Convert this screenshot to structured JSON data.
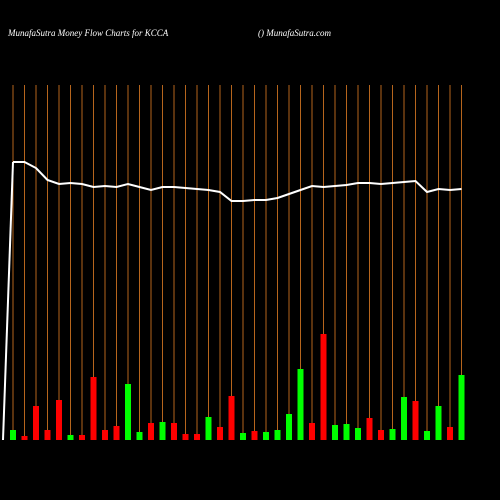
{
  "chart_data": {
    "type": "bar",
    "title": "MunafaSutra  Money Flow  Charts for KCCA",
    "subtitle": "() MunafaSutra.com",
    "ylim": [
      0,
      355
    ],
    "bar_colors": [
      "#00ff00",
      "#ff0000",
      "#ff0000",
      "#ff0000",
      "#ff0000",
      "#00ff00",
      "#ff0000",
      "#ff0000",
      "#ff0000",
      "#ff0000",
      "#00ff00",
      "#00ff00",
      "#ff0000",
      "#00ff00",
      "#ff0000",
      "#ff0000",
      "#ff0000",
      "#00ff00",
      "#ff0000",
      "#ff0000",
      "#00ff00",
      "#ff0000",
      "#00ff00",
      "#00ff00",
      "#00ff00",
      "#00ff00",
      "#ff0000",
      "#ff0000",
      "#00ff00",
      "#00ff00",
      "#00ff00",
      "#ff0000",
      "#ff0000",
      "#00ff00",
      "#00ff00",
      "#ff0000",
      "#00ff00",
      "#00ff00",
      "#ff0000",
      "#00ff00"
    ],
    "values": [
      10,
      4,
      34,
      10,
      40,
      5,
      5,
      63,
      10,
      14,
      56,
      8,
      17,
      18,
      17,
      6,
      6,
      23,
      13,
      44,
      7,
      9,
      8,
      10,
      26,
      71,
      17,
      106,
      15,
      16,
      12,
      22,
      10,
      11,
      43,
      39,
      9,
      34,
      13,
      65
    ],
    "line_color": "#ffffff",
    "line_values": [
      278,
      278,
      272,
      260,
      256,
      257,
      256,
      253,
      254,
      253,
      256,
      253,
      250,
      253,
      253,
      252,
      251,
      250,
      248,
      239,
      239,
      240,
      240,
      242,
      246,
      250,
      254,
      253,
      254,
      255,
      257,
      257,
      256,
      257,
      258,
      259,
      248,
      251,
      250,
      251
    ]
  }
}
